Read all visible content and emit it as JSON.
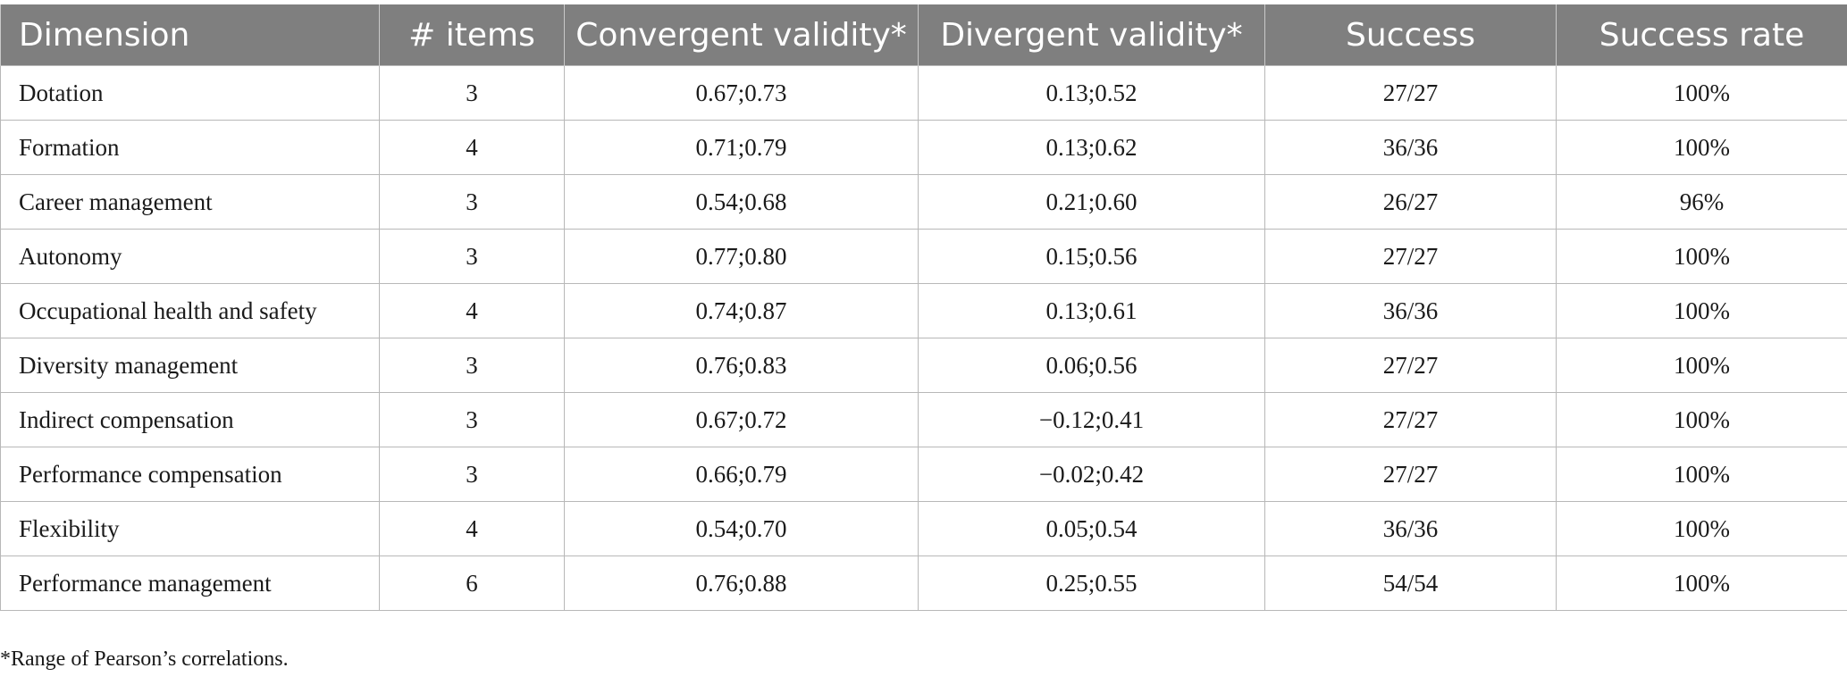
{
  "table": {
    "headers": [
      "Dimension",
      "# items",
      "Convergent validity*",
      "Divergent validity*",
      "Success",
      "Success rate"
    ],
    "rows": [
      [
        "Dotation",
        "3",
        "0.67;0.73",
        "0.13;0.52",
        "27/27",
        "100%"
      ],
      [
        "Formation",
        "4",
        "0.71;0.79",
        "0.13;0.62",
        "36/36",
        "100%"
      ],
      [
        "Career management",
        "3",
        "0.54;0.68",
        "0.21;0.60",
        "26/27",
        "96%"
      ],
      [
        "Autonomy",
        "3",
        "0.77;0.80",
        "0.15;0.56",
        "27/27",
        "100%"
      ],
      [
        "Occupational health and safety",
        "4",
        "0.74;0.87",
        "0.13;0.61",
        "36/36",
        "100%"
      ],
      [
        "Diversity management",
        "3",
        "0.76;0.83",
        "0.06;0.56",
        "27/27",
        "100%"
      ],
      [
        "Indirect compensation",
        "3",
        "0.67;0.72",
        "−0.12;0.41",
        "27/27",
        "100%"
      ],
      [
        "Performance compensation",
        "3",
        "0.66;0.79",
        "−0.02;0.42",
        "27/27",
        "100%"
      ],
      [
        "Flexibility",
        "4",
        "0.54;0.70",
        "0.05;0.54",
        "36/36",
        "100%"
      ],
      [
        "Performance management",
        "6",
        "0.76;0.88",
        "0.25;0.55",
        "54/54",
        "100%"
      ]
    ]
  },
  "footnote": "*Range of Pearson’s correlations.",
  "colors": {
    "header_background": "#7f7f7f",
    "header_text": "#ffffff",
    "grid_lines": "#b8b8b8"
  }
}
